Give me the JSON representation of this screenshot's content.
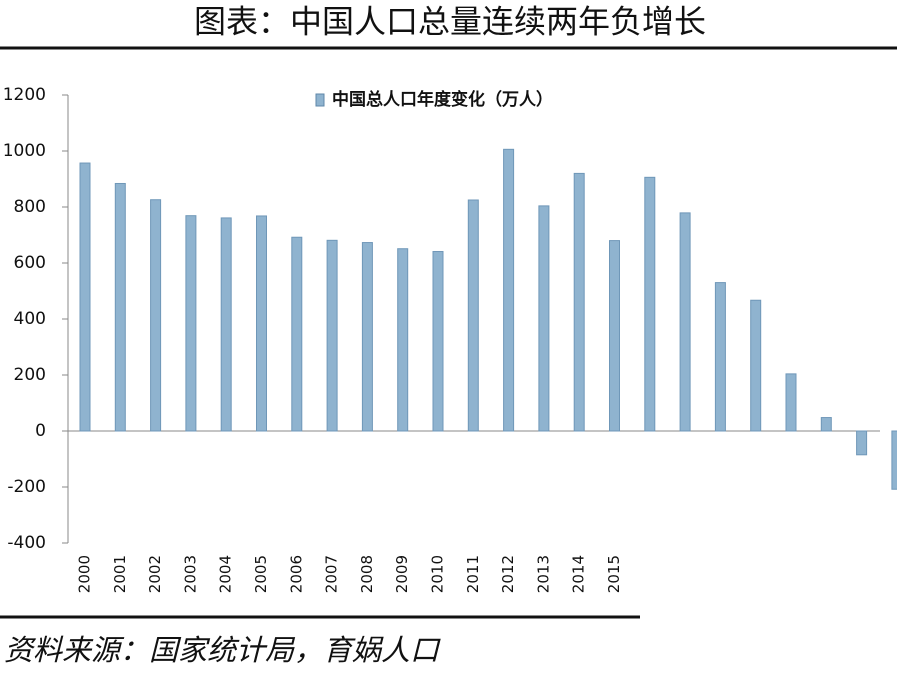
{
  "chart_data": {
    "type": "bar",
    "title": "图表：中国人口总量连续两年负增长",
    "legend": "中国总人口年度变化（万人）",
    "source": "资料来源：国家统计局，育娲人口",
    "categories": [
      "2000",
      "2001",
      "2002",
      "2003",
      "2004",
      "2005",
      "2006",
      "2007",
      "2008",
      "2009",
      "2010",
      "2011",
      "2012",
      "2013",
      "2014",
      "2015",
      null,
      null,
      null,
      null,
      null,
      null,
      null,
      null
    ],
    "values": [
      957,
      884,
      826,
      769,
      761,
      768,
      692,
      681,
      673,
      651,
      641,
      825,
      1006,
      804,
      920,
      680,
      906,
      779,
      530,
      467,
      204,
      48,
      -85,
      -208
    ],
    "color": "#8fb3cf",
    "ylim": [
      -400,
      1200
    ],
    "yticks": [
      -400,
      -200,
      0,
      200,
      400,
      600,
      800,
      1000,
      1200
    ]
  }
}
